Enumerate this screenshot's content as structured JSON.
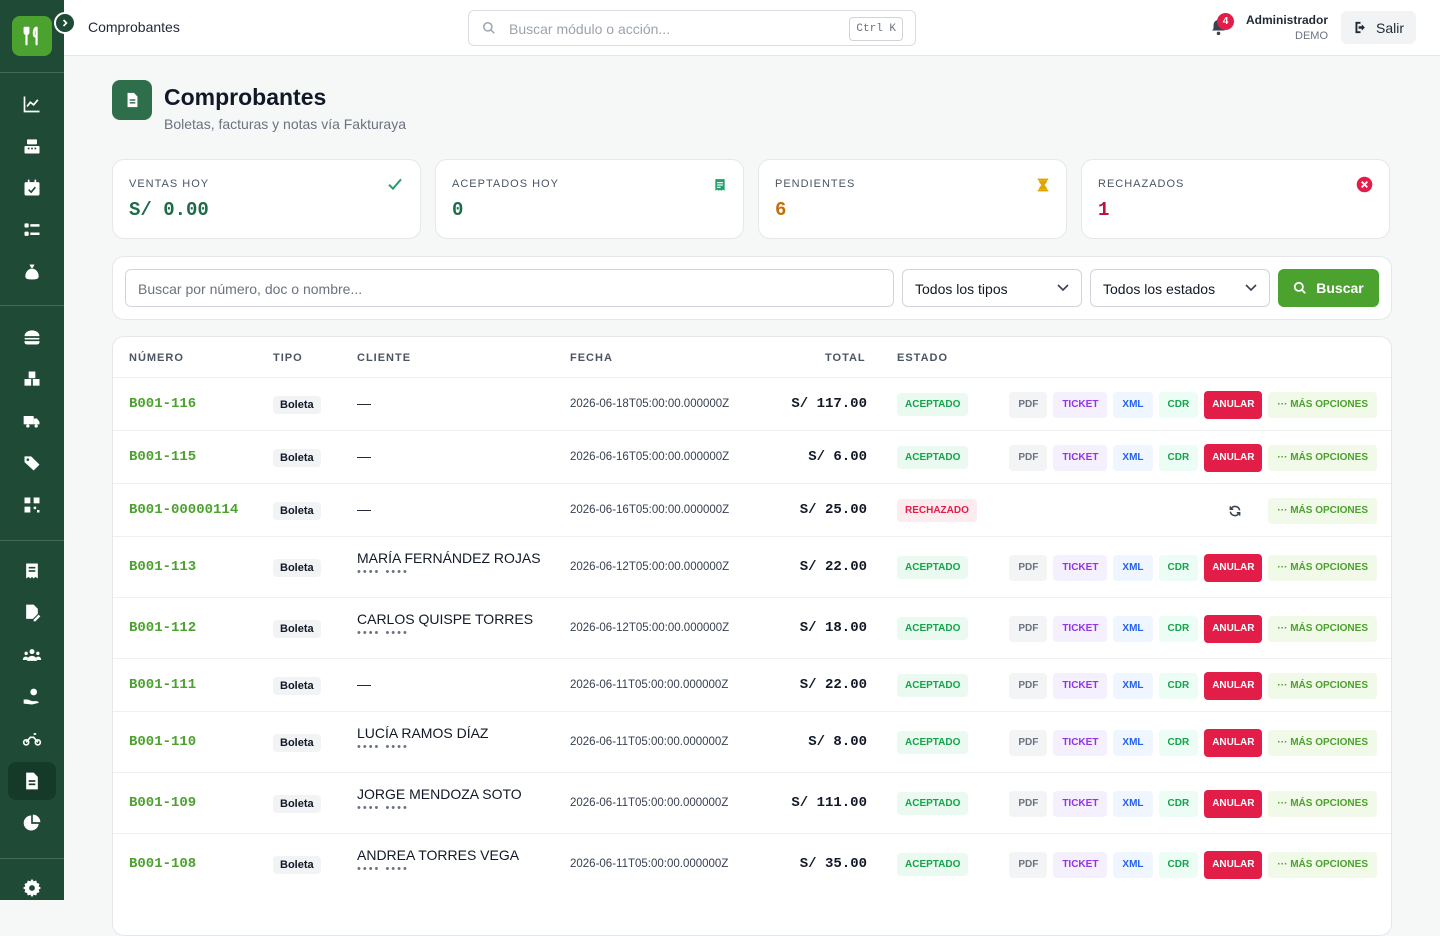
{
  "topbar": {
    "breadcrumb": "Comprobantes",
    "search_placeholder": "Buscar módulo o acción...",
    "search_shortcut": "Ctrl K",
    "notifications": "4",
    "user_name": "Administrador",
    "user_role": "DEMO",
    "logout_label": "Salir"
  },
  "page": {
    "title": "Comprobantes",
    "subtitle": "Boletas, facturas y notas vía Fakturaya"
  },
  "stats": [
    {
      "label": "VENTAS HOY",
      "value": "S/ 0.00",
      "color": "#1e6b4a",
      "icon": "check-icon"
    },
    {
      "label": "ACEPTADOS HOY",
      "value": "0",
      "color": "#1e6b4a",
      "icon": "receipt-icon"
    },
    {
      "label": "PENDIENTES",
      "value": "6",
      "color": "#c2700c",
      "icon": "hourglass-icon"
    },
    {
      "label": "RECHAZADOS",
      "value": "1",
      "color": "#be123c",
      "icon": "x-circle-icon"
    }
  ],
  "filters": {
    "search_placeholder": "Buscar por número, doc o nombre...",
    "type_select": "Todos los tipos",
    "status_select": "Todos los estados",
    "search_button": "Buscar"
  },
  "table": {
    "headers": {
      "numero": "NÚMERO",
      "tipo": "TIPO",
      "cliente": "CLIENTE",
      "fecha": "FECHA",
      "total": "TOTAL",
      "estado": "ESTADO"
    },
    "actions": {
      "pdf": "PDF",
      "ticket": "TICKET",
      "xml": "XML",
      "cdr": "CDR",
      "anular": "ANULAR",
      "mas": "MÁS OPCIONES"
    },
    "rows": [
      {
        "numero": "B001-116",
        "tipo": "Boleta",
        "cliente": "—",
        "doc": "",
        "fecha": "2026-06-18T05:00:00.000000Z",
        "total": "S/ 117.00",
        "estado": "ACEPTADO"
      },
      {
        "numero": "B001-115",
        "tipo": "Boleta",
        "cliente": "—",
        "doc": "",
        "fecha": "2026-06-16T05:00:00.000000Z",
        "total": "S/ 6.00",
        "estado": "ACEPTADO"
      },
      {
        "numero": "B001-00000114",
        "tipo": "Boleta",
        "cliente": "—",
        "doc": "",
        "fecha": "2026-06-16T05:00:00.000000Z",
        "total": "S/ 25.00",
        "estado": "RECHAZADO"
      },
      {
        "numero": "B001-113",
        "tipo": "Boleta",
        "cliente": "MARÍA FERNÁNDEZ ROJAS",
        "doc": "•••• ••••",
        "fecha": "2026-06-12T05:00:00.000000Z",
        "total": "S/ 22.00",
        "estado": "ACEPTADO"
      },
      {
        "numero": "B001-112",
        "tipo": "Boleta",
        "cliente": "CARLOS QUISPE TORRES",
        "doc": "•••• ••••",
        "fecha": "2026-06-12T05:00:00.000000Z",
        "total": "S/ 18.00",
        "estado": "ACEPTADO"
      },
      {
        "numero": "B001-111",
        "tipo": "Boleta",
        "cliente": "—",
        "doc": "",
        "fecha": "2026-06-11T05:00:00.000000Z",
        "total": "S/ 22.00",
        "estado": "ACEPTADO"
      },
      {
        "numero": "B001-110",
        "tipo": "Boleta",
        "cliente": "LUCÍA RAMOS DÍAZ",
        "doc": "•••• ••••",
        "fecha": "2026-06-11T05:00:00.000000Z",
        "total": "S/ 8.00",
        "estado": "ACEPTADO"
      },
      {
        "numero": "B001-109",
        "tipo": "Boleta",
        "cliente": "JORGE MENDOZA SOTO",
        "doc": "•••• ••••",
        "fecha": "2026-06-11T05:00:00.000000Z",
        "total": "S/ 111.00",
        "estado": "ACEPTADO"
      },
      {
        "numero": "B001-108",
        "tipo": "Boleta",
        "cliente": "ANDREA TORRES VEGA",
        "doc": "•••• ••••",
        "fecha": "2026-06-11T05:00:00.000000Z",
        "total": "S/ 35.00",
        "estado": "ACEPTADO"
      }
    ]
  },
  "colors": {
    "brand": "#4ca22e",
    "sidebar": "#1e4a36",
    "danger": "#e11d48"
  }
}
